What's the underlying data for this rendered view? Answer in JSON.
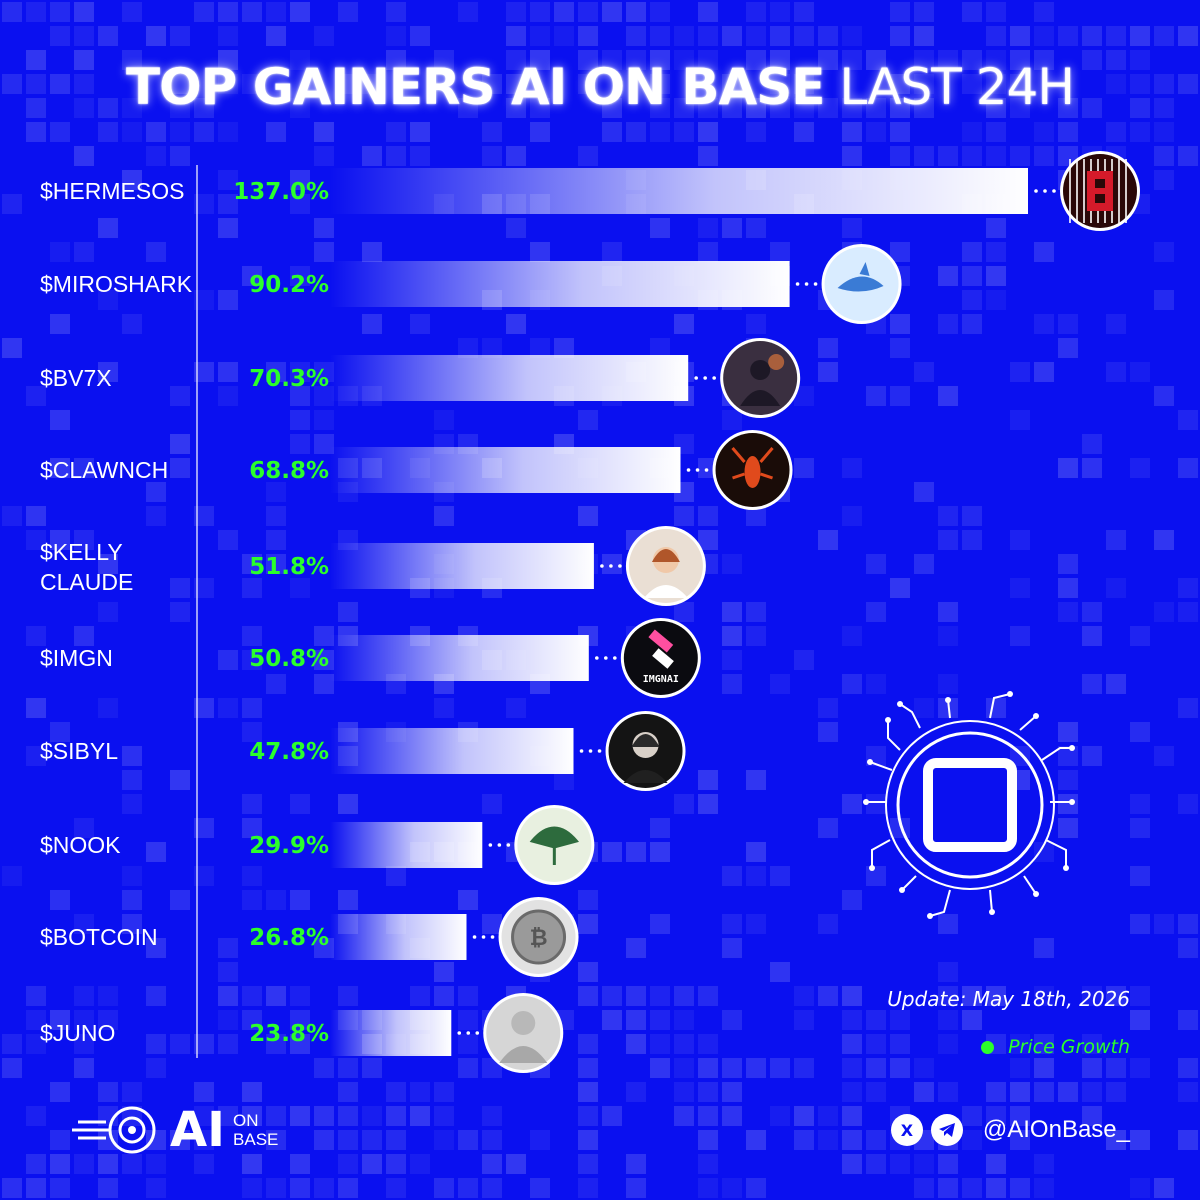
{
  "title": {
    "bold": "TOP GAINERS AI ON BASE",
    "light": "LAST 24H"
  },
  "chart_data": {
    "type": "bar",
    "orientation": "horizontal",
    "categories": [
      "$HERMESOS",
      "$MIROSHARK",
      "$BV7X",
      "$CLAWNCH",
      "$KELLY CLAUDE",
      "$IMGN",
      "$SIBYL",
      "$NOOK",
      "$BOTCOIN",
      "$JUNO"
    ],
    "values": [
      137.0,
      90.2,
      70.3,
      68.8,
      51.8,
      50.8,
      47.8,
      29.9,
      26.8,
      23.8
    ],
    "value_labels": [
      "137.0%",
      "90.2%",
      "70.3%",
      "68.8%",
      "51.8%",
      "50.8%",
      "47.8%",
      "29.9%",
      "26.8%",
      "23.8%"
    ],
    "icons": [
      "hermesos-logo-icon",
      "miroshark-logo-icon",
      "bv7x-logo-icon",
      "clawnch-lobster-icon",
      "kelly-claude-avatar-icon",
      "imgn-logo-icon",
      "sibyl-avatar-icon",
      "nook-ginkgo-leaf-icon",
      "botcoin-coin-icon",
      "juno-statue-icon"
    ],
    "bar_color": "#ffffff",
    "value_color": "#2bff2b",
    "grid": false
  },
  "update_text": "Update: May 18th, 2026",
  "legend": {
    "label": "Price Growth",
    "color": "#2bff2b"
  },
  "brand": {
    "ai": "AI",
    "on": "ON",
    "base": "BASE"
  },
  "social": {
    "handle": "@AIOnBase_",
    "icons": [
      "x-icon",
      "telegram-icon"
    ]
  },
  "colors": {
    "background": "#0a10f0",
    "bar": "#ffffff",
    "accent_green": "#2bff2b"
  }
}
